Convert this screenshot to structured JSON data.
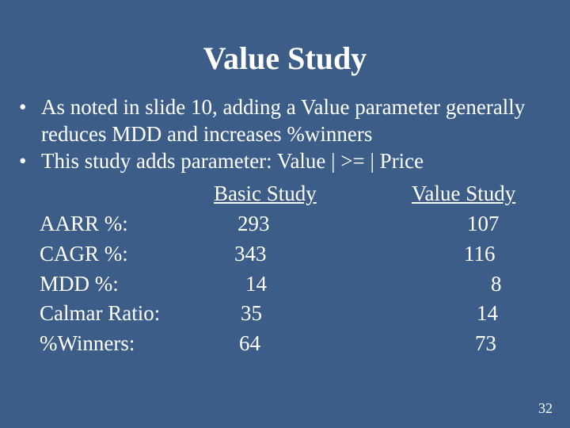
{
  "background_color": "#3c5d87",
  "text_color": "#ffffff",
  "font_family": "Georgia, serif",
  "title": "Value Study",
  "title_fontsize": 40,
  "body_fontsize": 27,
  "bullets": [
    "As noted in slide 10, adding a Value parameter generally reduces MDD and increases %winners",
    "This study adds parameter: Value | >= | Price"
  ],
  "table": {
    "headers": {
      "label": "",
      "basic": "Basic Study",
      "value": "Value Study"
    },
    "rows": [
      {
        "label": "AARR %:",
        "basic": "293",
        "value": "107"
      },
      {
        "label": "CAGR %:",
        "basic": "343",
        "value": "116"
      },
      {
        "label": "MDD %:",
        "basic": "14",
        "value": "8"
      },
      {
        "label": "Calmar Ratio:",
        "basic": "35",
        "value": "14"
      },
      {
        "label": "%Winners:",
        "basic": "64",
        "value": "73"
      }
    ],
    "value_padding": {
      "0": 70,
      "1": 70,
      "2": 90,
      "3": 78,
      "4": 78
    },
    "basic_padding": {
      "0": 40,
      "1": 36,
      "2": 50,
      "3": 44,
      "4": 42
    }
  },
  "page_number": "32"
}
